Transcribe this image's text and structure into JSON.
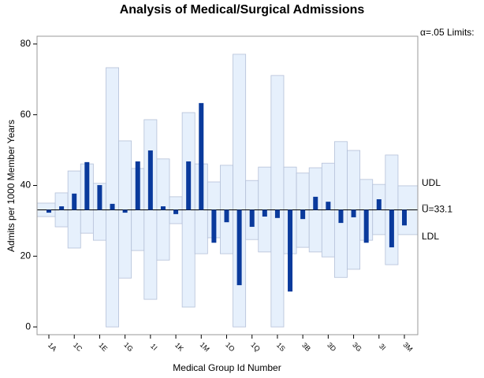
{
  "chart_data": {
    "type": "anom",
    "title": "Analysis of Medical/Surgical Admissions",
    "xlabel": "Medical Group Id Number",
    "ylabel": "Admits per 1000 Member Years",
    "categories": [
      "1A",
      null,
      "1C",
      null,
      "1E",
      null,
      "1G",
      null,
      "1I",
      null,
      "1K",
      null,
      "1M",
      null,
      "1O",
      null,
      "1Q",
      null,
      "1S",
      null,
      "3B",
      null,
      "3D",
      null,
      "3G",
      null,
      "3I",
      null,
      "3M"
    ],
    "values": [
      32.3,
      34.1,
      37.7,
      46.6,
      40.1,
      34.8,
      32.3,
      46.8,
      49.9,
      34.1,
      31.9,
      46.8,
      63.3,
      23.8,
      29.6,
      11.8,
      28.3,
      31.2,
      30.8,
      10,
      30.5,
      36.8,
      35.4,
      29.4,
      31,
      23.8,
      36.1,
      22.5,
      28.7
    ],
    "udl": [
      35,
      37.9,
      44.1,
      46.1,
      40.6,
      73.3,
      52.6,
      44.8,
      58.6,
      47.5,
      36.8,
      60.6,
      46.1,
      41,
      45.7,
      77.1,
      41.4,
      45.2,
      71.1,
      45.2,
      43.5,
      45,
      46.3,
      52.4,
      49.9,
      41.7,
      40.3,
      48.6,
      39.9
    ],
    "ldl": [
      31.2,
      28.3,
      22.3,
      26.5,
      24.5,
      0,
      13.8,
      21.6,
      7.8,
      18.9,
      29.2,
      5.6,
      20.7,
      25.2,
      20.7,
      0,
      24.7,
      21.2,
      0,
      20.7,
      22.5,
      21.2,
      19.8,
      14,
      16.3,
      24.5,
      26.1,
      17.6,
      26.1
    ],
    "center": {
      "value": 33.1,
      "label": "U̅=33.1"
    },
    "limits_label": "α=.05 Limits:",
    "udl_label": "UDL",
    "ldl_label": "LDL",
    "bar_color": "#0a3a9c",
    "band_color": "#e6f0fc",
    "ylim": [
      -2.2,
      82.2
    ],
    "yticks": [
      0,
      20,
      40,
      60,
      80
    ]
  }
}
